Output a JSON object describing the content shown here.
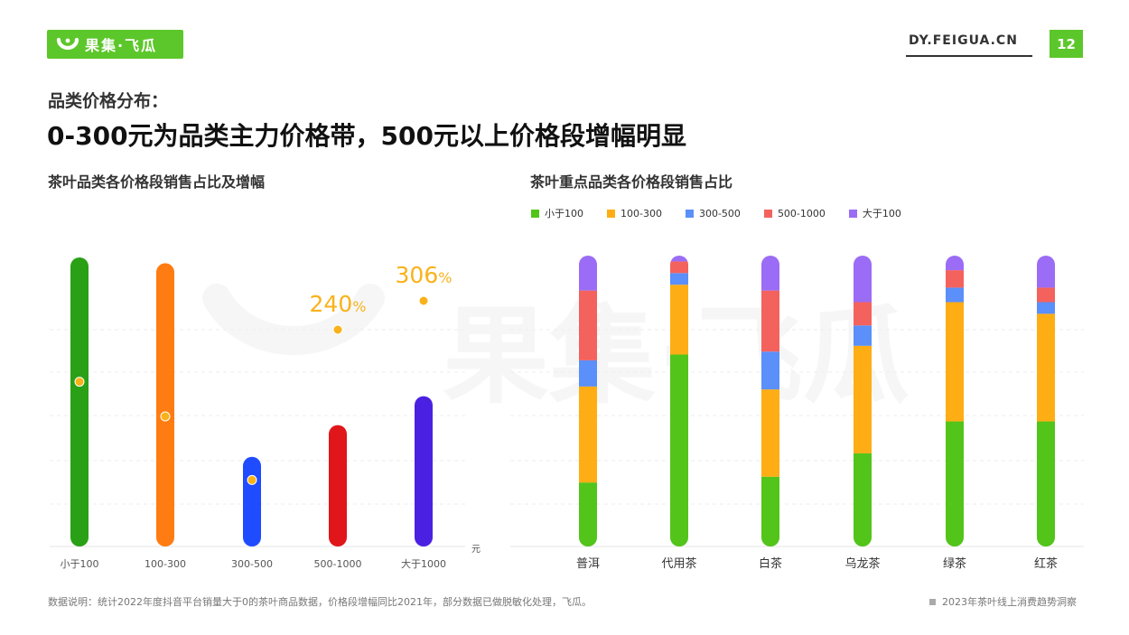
{
  "header": {
    "logo_text": "果集·飞瓜",
    "site": "DY.FEIGUA.CN",
    "page_number": "12",
    "brand_color": "#5cc72a"
  },
  "subtitle": "品类价格分布：",
  "title": "0-300元为品类主力价格带，500元以上价格段增幅明显",
  "footnote": "数据说明：统计2022年度抖音平台销量大于0的茶叶商品数据，价格段增幅同比2021年，部分数据已做脱敏化处理，飞瓜。",
  "source": "2023年茶叶线上消费趋势洞察",
  "watermark": "果集·飞瓜",
  "chart_data": [
    {
      "type": "bar",
      "title": "茶叶品类各价格段销售占比及增幅",
      "categories": [
        "小于100",
        "100-300",
        "300-500",
        "500-1000",
        "大于1000"
      ],
      "x_unit": "元",
      "ylim": [
        0,
        100
      ],
      "series": [
        {
          "values": [
            100,
            98,
            31,
            42,
            52
          ],
          "colors": [
            "#29a015",
            "#ff7c12",
            "#1f4cff",
            "#e0161b",
            "#4a21e2"
          ]
        }
      ],
      "growth": {
        "labels": [
          "",
          "",
          "",
          "240",
          "306"
        ],
        "label_suffix": "%",
        "values": [
          57,
          45,
          23,
          75,
          85
        ],
        "ylim": [
          0,
          100
        ],
        "label_color": "#f9b21a"
      }
    },
    {
      "type": "bar",
      "stacked": true,
      "title": "茶叶重点品类各价格段销售占比",
      "categories": [
        "普洱",
        "代用茶",
        "白茶",
        "乌龙茶",
        "绿茶",
        "红茶"
      ],
      "legend_position": "top-left",
      "ylim": [
        0,
        100
      ],
      "series": [
        {
          "name": "小于100",
          "color": "#52c41a",
          "values": [
            22,
            66,
            24,
            32,
            43,
            43
          ]
        },
        {
          "name": "100-300",
          "color": "#ffad14",
          "values": [
            33,
            24,
            30,
            37,
            41,
            37
          ]
        },
        {
          "name": "300-500",
          "color": "#5b8ff9",
          "values": [
            9,
            4,
            13,
            7,
            5,
            4
          ]
        },
        {
          "name": "500-1000",
          "color": "#f4625d",
          "values": [
            24,
            4,
            21,
            8,
            6,
            5
          ]
        },
        {
          "name": "大于100",
          "color": "#9b6cf5",
          "values": [
            12,
            2,
            12,
            16,
            5,
            11
          ]
        }
      ]
    }
  ]
}
